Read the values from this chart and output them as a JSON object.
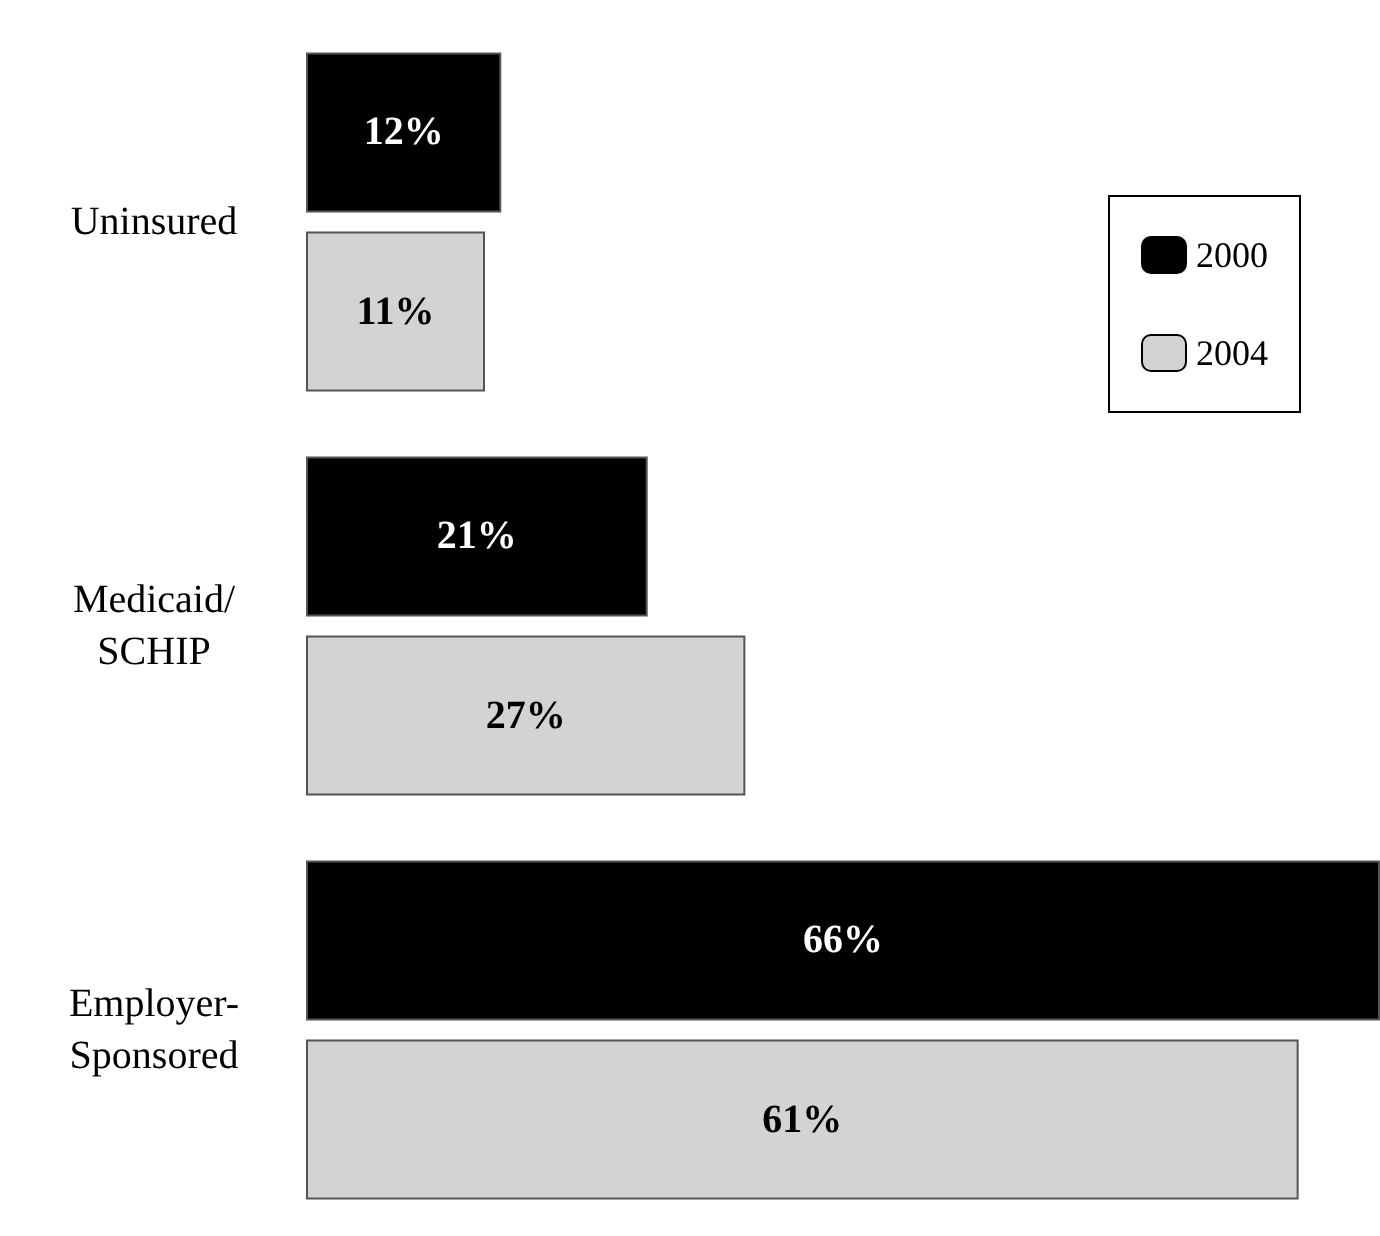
{
  "chart_data": {
    "type": "bar",
    "orientation": "horizontal",
    "categories": [
      "Uninsured",
      "Medicaid/SCHIP",
      "Employer-Sponsored"
    ],
    "series": [
      {
        "name": "2000",
        "color": "#000000",
        "values": [
          12,
          21,
          66
        ],
        "value_labels": [
          "12%",
          "21%",
          "66%"
        ]
      },
      {
        "name": "2004",
        "color": "#d3d3d3",
        "values": [
          11,
          27,
          61
        ],
        "value_labels": [
          "11%",
          "27%",
          "61%"
        ]
      }
    ],
    "legend": "top right"
  }
}
